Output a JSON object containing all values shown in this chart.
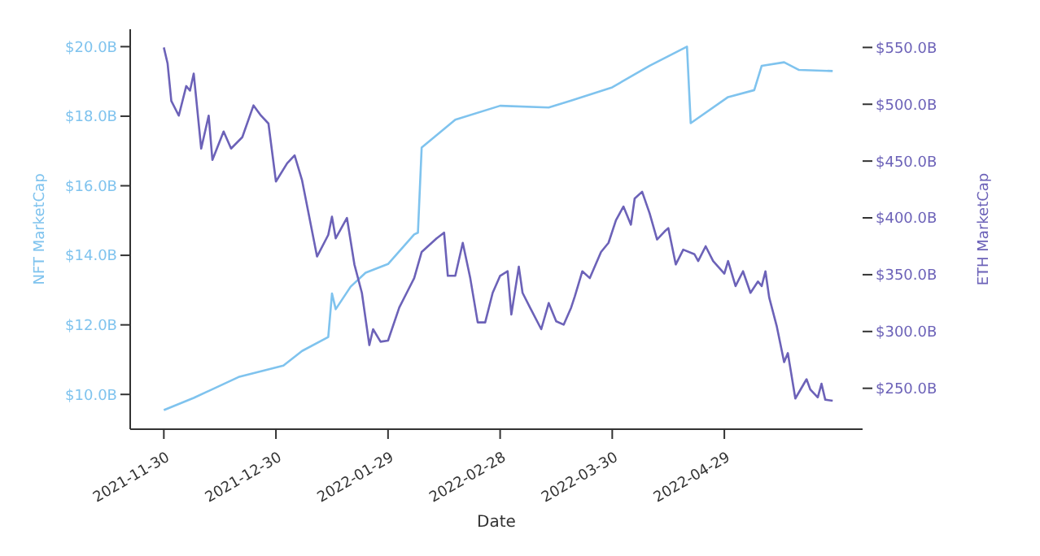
{
  "chart_data": {
    "type": "line",
    "xlabel": "Date",
    "ylabel": "NFT MarketCap",
    "y2label": "ETH MarketCap",
    "xlim": [
      "2021-11-21",
      "2022-06-05"
    ],
    "xticks": [
      "2021-11-30",
      "2021-12-30",
      "2022-01-29",
      "2022-02-28",
      "2022-03-30",
      "2022-04-29"
    ],
    "ylim": [
      9.0,
      20.5
    ],
    "yticks": [
      {
        "value": 10,
        "label": "$10.0B"
      },
      {
        "value": 12,
        "label": "$12.0B"
      },
      {
        "value": 14,
        "label": "$14.0B"
      },
      {
        "value": 16,
        "label": "$16.0B"
      },
      {
        "value": 18,
        "label": "$18.0B"
      },
      {
        "value": 20,
        "label": "$20.0B"
      }
    ],
    "y2lim": [
      214,
      566
    ],
    "y2ticks": [
      {
        "value": 250,
        "label": "$250.0B"
      },
      {
        "value": 300,
        "label": "$300.0B"
      },
      {
        "value": 350,
        "label": "$350.0B"
      },
      {
        "value": 400,
        "label": "$400.0B"
      },
      {
        "value": 450,
        "label": "$450.0B"
      },
      {
        "value": 500,
        "label": "$500.0B"
      },
      {
        "value": 550,
        "label": "$550.0B"
      }
    ],
    "grid": false,
    "legend": false,
    "marker": "none",
    "line_style": "solid",
    "series": [
      {
        "color": "#7fc3ee",
        "x": [
          "2021-11-30",
          "2021-12-08",
          "2021-12-20",
          "2022-01-01",
          "2022-01-06",
          "2022-01-13",
          "2022-01-14",
          "2022-01-15",
          "2022-01-19",
          "2022-01-23",
          "2022-01-29",
          "2022-02-05",
          "2022-02-06",
          "2022-02-07",
          "2022-02-16",
          "2022-02-28",
          "2022-03-13",
          "2022-03-19",
          "2022-03-30",
          "2022-04-09",
          "2022-04-19",
          "2022-04-20",
          "2022-04-30",
          "2022-05-07",
          "2022-05-09",
          "2022-05-15",
          "2022-05-19",
          "2022-05-28"
        ],
        "values": [
          9.55,
          9.9,
          10.5,
          10.83,
          11.25,
          11.65,
          12.9,
          12.45,
          13.1,
          13.5,
          13.75,
          14.6,
          14.65,
          17.1,
          17.9,
          18.3,
          18.25,
          18.45,
          18.83,
          19.45,
          20.0,
          17.8,
          18.55,
          18.75,
          19.45,
          19.55,
          19.33,
          19.3
        ]
      },
      {
        "color": "#6c62b8",
        "axis": "y2",
        "x": [
          "2021-11-30",
          "2021-12-01",
          "2021-12-02",
          "2021-12-04",
          "2021-12-06",
          "2021-12-07",
          "2021-12-08",
          "2021-12-10",
          "2021-12-12",
          "2021-12-13",
          "2021-12-16",
          "2021-12-18",
          "2021-12-21",
          "2021-12-24",
          "2021-12-26",
          "2021-12-28",
          "2021-12-30",
          "2022-01-02",
          "2022-01-04",
          "2022-01-06",
          "2022-01-10",
          "2022-01-13",
          "2022-01-14",
          "2022-01-15",
          "2022-01-18",
          "2022-01-20",
          "2022-01-22",
          "2022-01-24",
          "2022-01-25",
          "2022-01-27",
          "2022-01-29",
          "2022-02-01",
          "2022-02-03",
          "2022-02-05",
          "2022-02-07",
          "2022-02-11",
          "2022-02-13",
          "2022-02-14",
          "2022-02-16",
          "2022-02-18",
          "2022-02-20",
          "2022-02-22",
          "2022-02-24",
          "2022-02-26",
          "2022-02-28",
          "2022-03-02",
          "2022-03-03",
          "2022-03-05",
          "2022-03-06",
          "2022-03-08",
          "2022-03-11",
          "2022-03-13",
          "2022-03-15",
          "2022-03-17",
          "2022-03-19",
          "2022-03-20",
          "2022-03-22",
          "2022-03-24",
          "2022-03-27",
          "2022-03-29",
          "2022-03-31",
          "2022-04-02",
          "2022-04-04",
          "2022-04-05",
          "2022-04-07",
          "2022-04-09",
          "2022-04-11",
          "2022-04-13",
          "2022-04-14",
          "2022-04-16",
          "2022-04-18",
          "2022-04-21",
          "2022-04-22",
          "2022-04-24",
          "2022-04-26",
          "2022-04-29",
          "2022-04-30",
          "2022-05-02",
          "2022-05-04",
          "2022-05-06",
          "2022-05-08",
          "2022-05-09",
          "2022-05-10",
          "2022-05-11",
          "2022-05-13",
          "2022-05-15",
          "2022-05-16",
          "2022-05-18",
          "2022-05-21",
          "2022-05-22",
          "2022-05-24",
          "2022-05-25",
          "2022-05-26",
          "2022-05-28"
        ],
        "values": [
          550,
          536,
          503,
          490,
          516,
          512,
          527,
          461,
          490,
          451,
          476,
          461,
          471,
          499,
          490,
          483,
          432,
          448,
          455,
          433,
          366,
          385,
          401,
          382,
          400,
          359,
          334,
          288,
          302,
          291,
          292,
          321,
          334,
          347,
          370,
          382,
          387,
          349,
          349,
          378,
          347,
          308,
          308,
          334,
          349,
          353,
          315,
          357,
          334,
          321,
          302,
          325,
          309,
          306,
          321,
          331,
          353,
          347,
          370,
          378,
          398,
          410,
          394,
          417,
          423,
          404,
          381,
          388,
          391,
          359,
          372,
          368,
          362,
          375,
          362,
          351,
          362,
          340,
          353,
          334,
          344,
          340,
          353,
          330,
          305,
          273,
          281,
          241,
          258,
          249,
          242,
          254,
          240,
          239
        ]
      }
    ]
  }
}
